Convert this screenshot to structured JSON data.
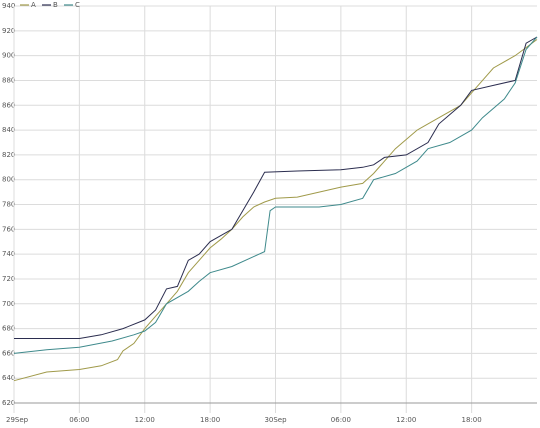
{
  "chart_data": {
    "type": "line",
    "xlim": [
      0,
      48
    ],
    "xticks": [
      {
        "value": 0,
        "label": "29Sep"
      },
      {
        "value": 6,
        "label": "06:00"
      },
      {
        "value": 12,
        "label": "12:00"
      },
      {
        "value": 18,
        "label": "18:00"
      },
      {
        "value": 24,
        "label": "30Sep"
      },
      {
        "value": 30,
        "label": "06:00"
      },
      {
        "value": 36,
        "label": "12:00"
      },
      {
        "value": 42,
        "label": "18:00"
      }
    ],
    "ylim": [
      620,
      940
    ],
    "yticks": [
      620,
      640,
      660,
      680,
      700,
      720,
      740,
      760,
      780,
      800,
      820,
      840,
      860,
      880,
      900,
      920,
      940
    ],
    "grid": true,
    "legend": "top-left",
    "series": [
      {
        "name": "A",
        "color": "#a09a4a",
        "x": [
          0,
          3,
          6,
          8,
          9.5,
          10,
          11,
          12,
          13,
          14,
          15,
          16,
          17,
          18,
          19,
          20,
          21,
          22,
          23,
          24,
          26,
          28,
          30,
          32,
          33,
          35,
          37,
          39,
          41,
          42,
          43,
          44,
          46,
          48
        ],
        "values": [
          638,
          645,
          647,
          650,
          655,
          662,
          668,
          680,
          690,
          700,
          710,
          725,
          735,
          745,
          752,
          760,
          770,
          778,
          782,
          785,
          786,
          790,
          794,
          797,
          805,
          825,
          840,
          850,
          860,
          870,
          880,
          890,
          900,
          913
        ]
      },
      {
        "name": "B",
        "color": "#2b2d4f",
        "x": [
          0,
          6,
          8,
          10,
          12,
          13,
          14,
          15,
          16,
          17,
          18,
          20,
          22,
          23,
          26,
          30,
          32,
          33,
          34,
          36,
          38,
          39,
          41,
          42,
          44,
          46,
          47,
          48
        ],
        "values": [
          672,
          672,
          675,
          680,
          687,
          695,
          712,
          714,
          735,
          740,
          750,
          760,
          790,
          806,
          807,
          808,
          810,
          812,
          818,
          820,
          830,
          845,
          860,
          872,
          876,
          880,
          910,
          915
        ]
      },
      {
        "name": "C",
        "color": "#3f8a8c",
        "x": [
          0,
          3,
          6,
          9,
          11,
          12,
          13,
          14,
          16,
          17,
          18,
          20,
          22,
          23,
          23.5,
          24,
          28,
          30,
          32,
          33,
          35,
          37,
          38,
          40,
          42,
          43,
          45,
          46,
          47,
          48
        ],
        "values": [
          660,
          663,
          665,
          670,
          675,
          678,
          685,
          700,
          710,
          718,
          725,
          730,
          738,
          742,
          775,
          778,
          778,
          780,
          785,
          800,
          805,
          815,
          825,
          830,
          840,
          850,
          865,
          878,
          905,
          915
        ]
      }
    ]
  }
}
